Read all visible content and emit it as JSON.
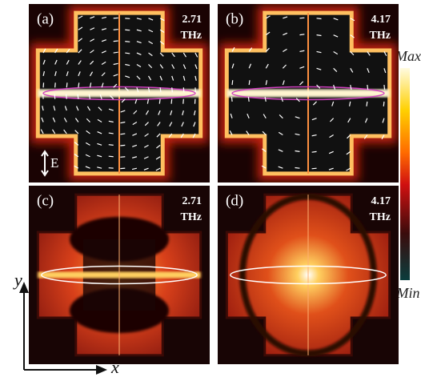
{
  "panels": [
    {
      "label": "(a)",
      "frequency": "2.71",
      "unit": "THz"
    },
    {
      "label": "(b)",
      "frequency": "4.17",
      "unit": "THz"
    },
    {
      "label": "(c)",
      "frequency": "2.71",
      "unit": "THz"
    },
    {
      "label": "(d)",
      "frequency": "4.17",
      "unit": "THz"
    }
  ],
  "colorbar": {
    "max": "Max",
    "min": "Min"
  },
  "axes": {
    "x": "x",
    "y": "y"
  },
  "field_label": "E"
}
